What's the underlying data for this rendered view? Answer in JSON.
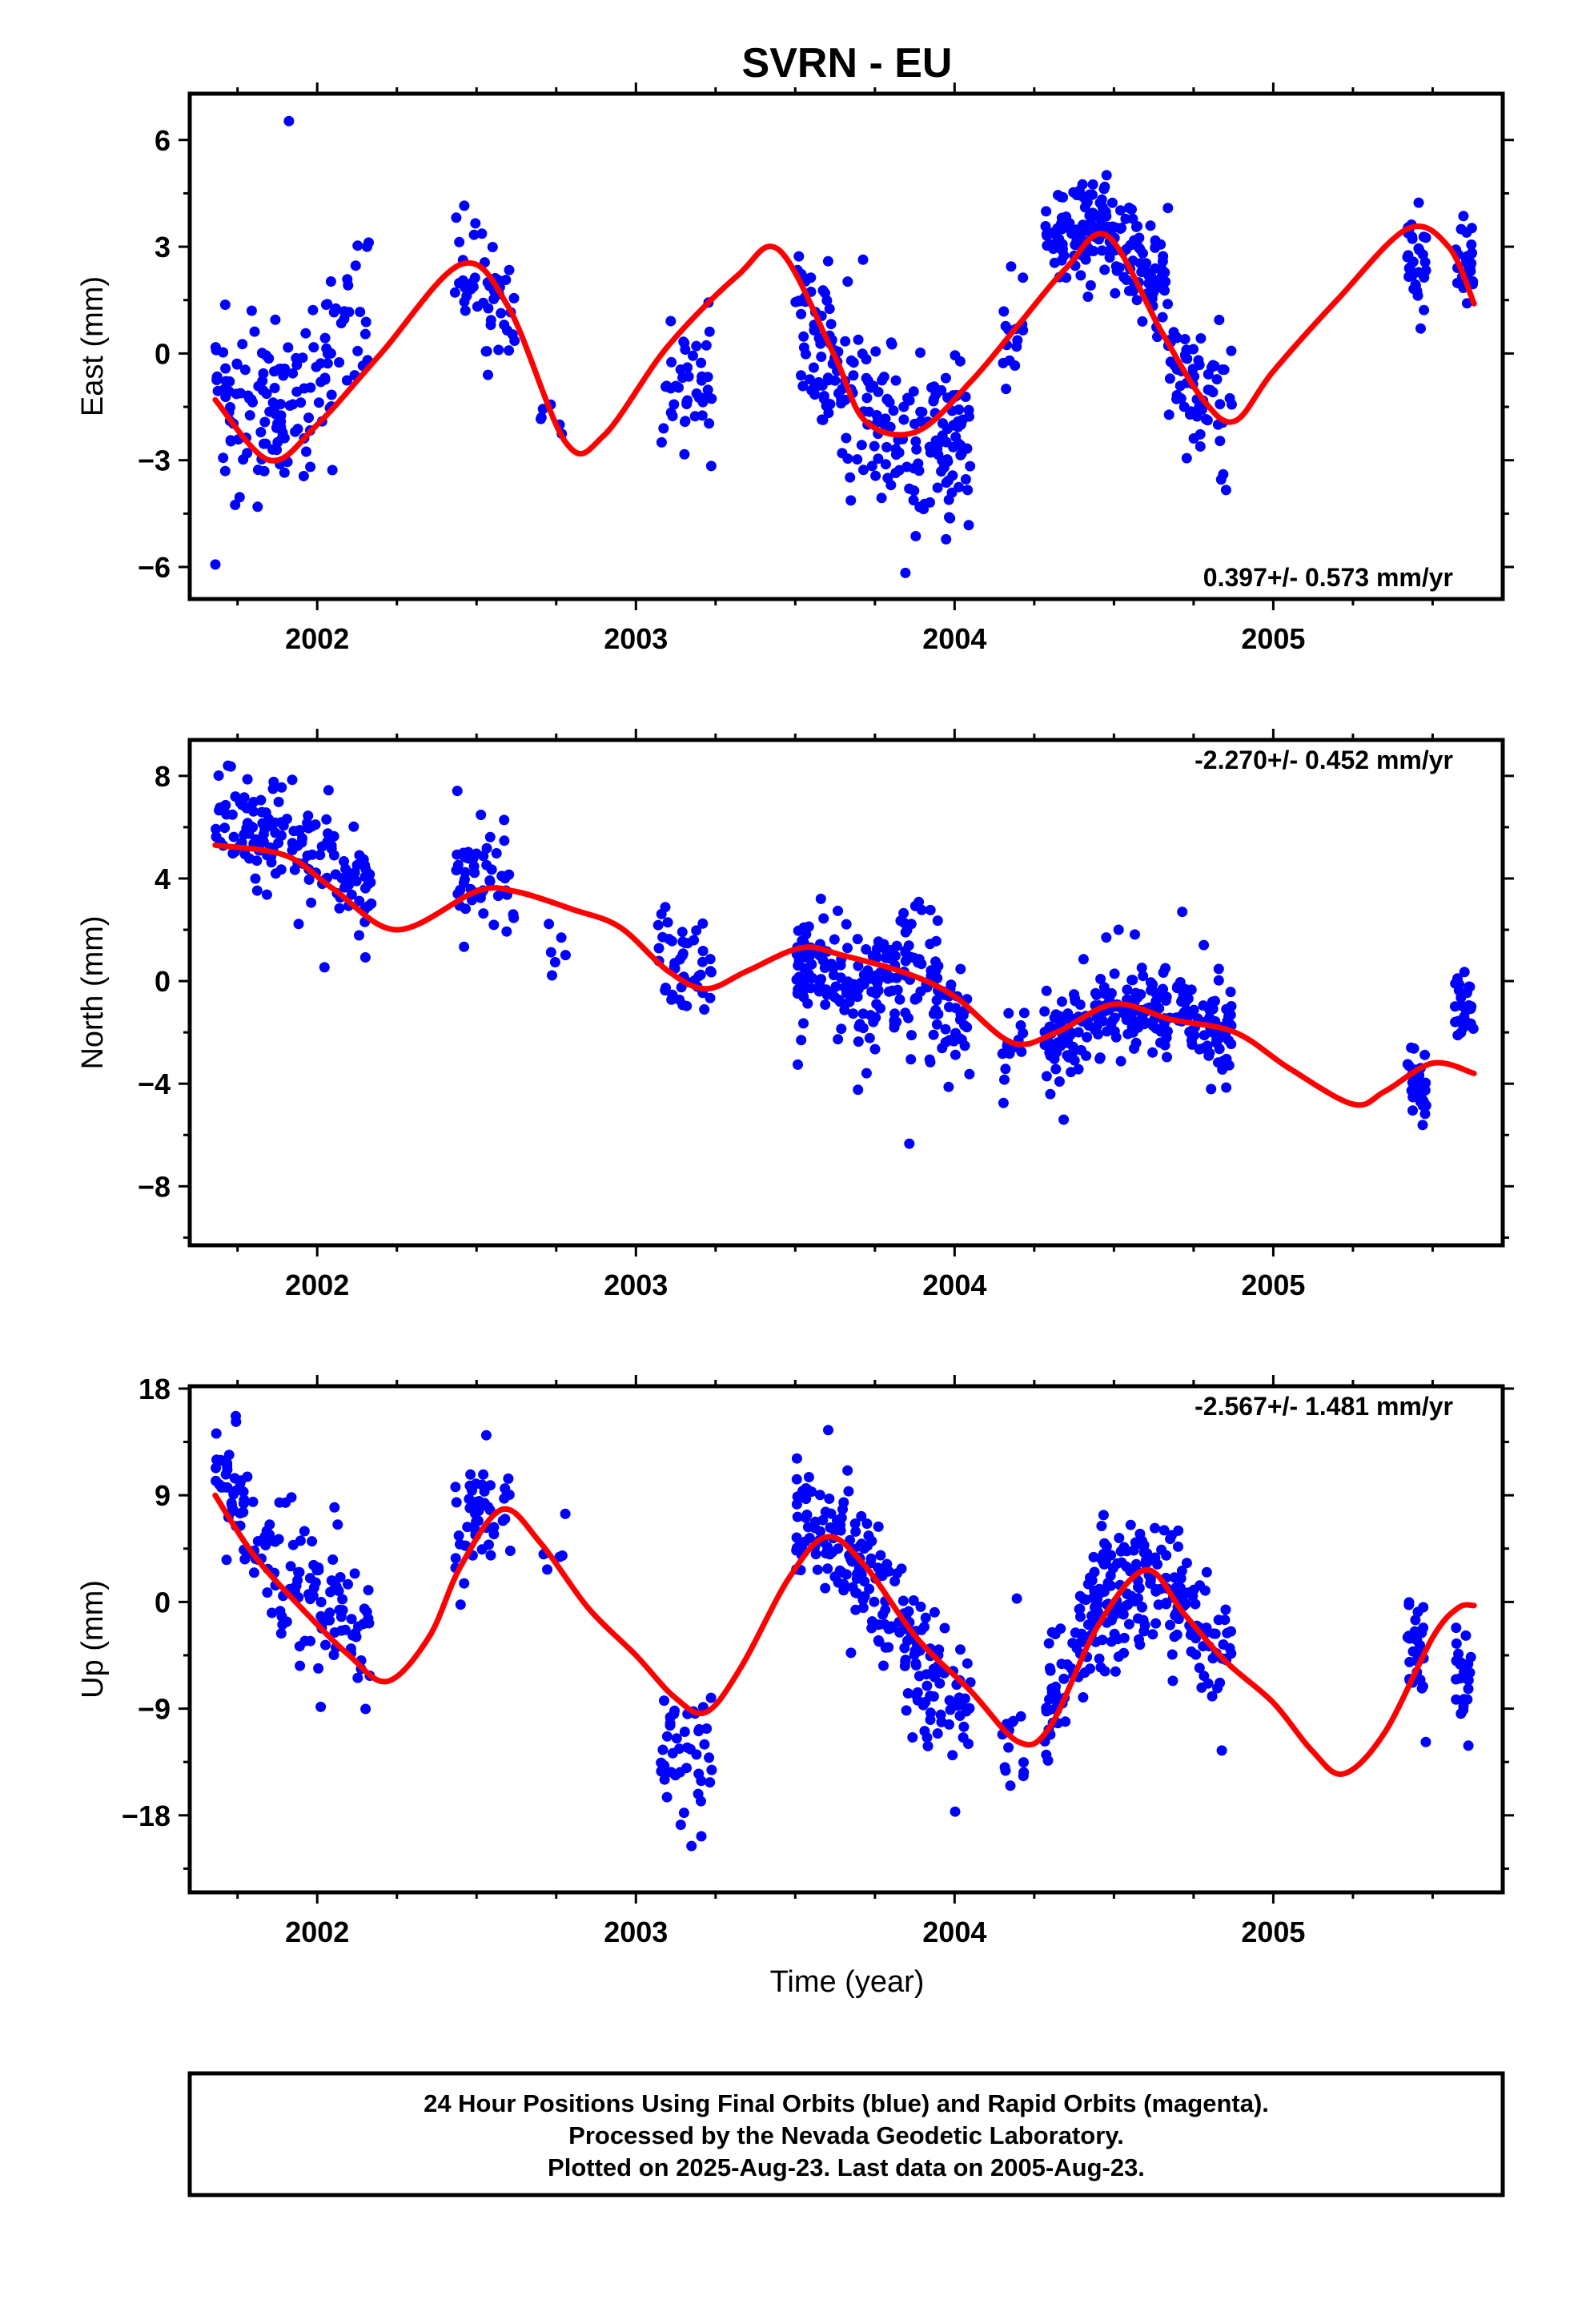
{
  "title": "SVRN - EU",
  "xlabel": "Time (year)",
  "footer": {
    "line1": "24 Hour Positions Using Final Orbits (blue) and Rapid Orbits (magenta).",
    "line2": "Processed by the Nevada Geodetic Laboratory.",
    "line3": "Plotted on 2025-Aug-23. Last data on 2005-Aug-23."
  },
  "colors": {
    "points": "#0000ff",
    "fit": "#ff0000",
    "frame": "#000000"
  },
  "chart_data": [
    {
      "type": "scatter",
      "name": "east",
      "ylabel": "East (mm)",
      "rate_text": "0.397+/- 0.573 mm/yr",
      "rate_position": "bottom-right",
      "xlim": [
        2001.6,
        2005.72
      ],
      "ylim": [
        -6.9,
        7.3
      ],
      "xticks": [
        2002,
        2003,
        2004,
        2005
      ],
      "yticks": [
        -6,
        -3,
        0,
        3,
        6
      ],
      "fit_knots": [
        [
          2001.68,
          -1.3
        ],
        [
          2001.85,
          -3.0
        ],
        [
          2002.0,
          -2.0
        ],
        [
          2002.2,
          0.0
        ],
        [
          2002.45,
          2.5
        ],
        [
          2002.6,
          1.3
        ],
        [
          2002.78,
          -2.5
        ],
        [
          2002.9,
          -2.3
        ],
        [
          2003.1,
          0.2
        ],
        [
          2003.32,
          2.2
        ],
        [
          2003.45,
          2.9
        ],
        [
          2003.62,
          0.0
        ],
        [
          2003.72,
          -1.9
        ],
        [
          2003.88,
          -2.2
        ],
        [
          2004.05,
          -0.8
        ],
        [
          2004.2,
          0.8
        ],
        [
          2004.35,
          2.4
        ],
        [
          2004.48,
          3.3
        ],
        [
          2004.65,
          0.6
        ],
        [
          2004.78,
          -1.3
        ],
        [
          2004.88,
          -1.9
        ],
        [
          2005.0,
          -0.5
        ],
        [
          2005.2,
          1.5
        ],
        [
          2005.42,
          3.5
        ],
        [
          2005.55,
          3.0
        ],
        [
          2005.63,
          1.4
        ]
      ],
      "point_groups": [
        {
          "x_range": [
            2001.68,
            2002.17
          ],
          "trend": [
            [
              2001.68,
              -1.0
            ],
            [
              2001.85,
              -2.0
            ],
            [
              2002.0,
              -0.5
            ],
            [
              2002.15,
              1.5
            ]
          ],
          "spread": 2.3,
          "count": 150
        },
        {
          "x_range": [
            2002.43,
            2002.62
          ],
          "trend": [
            [
              2002.43,
              3.0
            ],
            [
              2002.62,
              0.5
            ]
          ],
          "spread": 1.8,
          "count": 50
        },
        {
          "x_range": [
            2002.7,
            2002.78
          ],
          "trend": [
            [
              2002.7,
              -1.5
            ],
            [
              2002.78,
              -2.2
            ]
          ],
          "spread": 0.8,
          "count": 6
        },
        {
          "x_range": [
            2003.07,
            2003.24
          ],
          "trend": [
            [
              2003.07,
              -1.2
            ],
            [
              2003.24,
              -0.8
            ]
          ],
          "spread": 1.8,
          "count": 45
        },
        {
          "x_range": [
            2003.5,
            2004.05
          ],
          "trend": [
            [
              2003.5,
              1.5
            ],
            [
              2003.7,
              -2.0
            ],
            [
              2003.9,
              -3.0
            ],
            [
              2004.05,
              -2.5
            ]
          ],
          "spread": 2.6,
          "count": 220
        },
        {
          "x_range": [
            2004.15,
            2004.22
          ],
          "trend": [
            [
              2004.15,
              0.0
            ],
            [
              2004.22,
              1.0
            ]
          ],
          "spread": 1.2,
          "count": 15
        },
        {
          "x_range": [
            2004.28,
            2004.67
          ],
          "trend": [
            [
              2004.28,
              3.2
            ],
            [
              2004.45,
              3.8
            ],
            [
              2004.67,
              1.8
            ]
          ],
          "spread": 1.4,
          "count": 180
        },
        {
          "x_range": [
            2004.67,
            2004.87
          ],
          "trend": [
            [
              2004.67,
              -0.5
            ],
            [
              2004.87,
              -1.8
            ]
          ],
          "spread": 1.7,
          "count": 70
        },
        {
          "x_range": [
            2005.42,
            2005.48
          ],
          "trend": [
            [
              2005.42,
              3.0
            ],
            [
              2005.48,
              2.0
            ]
          ],
          "spread": 1.6,
          "count": 30
        },
        {
          "x_range": [
            2005.57,
            2005.63
          ],
          "trend": [
            [
              2005.57,
              2.8
            ],
            [
              2005.63,
              2.2
            ]
          ],
          "spread": 1.3,
          "count": 25
        }
      ],
      "seed": 11
    },
    {
      "type": "scatter",
      "name": "north",
      "ylabel": "North (mm)",
      "rate_text": "-2.270+/- 0.452 mm/yr",
      "rate_position": "top-right",
      "xlim": [
        2001.6,
        2005.72
      ],
      "ylim": [
        -10.3,
        9.4
      ],
      "xticks": [
        2002,
        2003,
        2004,
        2005
      ],
      "yticks": [
        -8,
        -4,
        0,
        4,
        8
      ],
      "fit_knots": [
        [
          2001.68,
          5.3
        ],
        [
          2001.9,
          4.9
        ],
        [
          2002.05,
          3.6
        ],
        [
          2002.25,
          2.0
        ],
        [
          2002.5,
          3.5
        ],
        [
          2002.62,
          3.5
        ],
        [
          2002.8,
          2.8
        ],
        [
          2002.95,
          2.1
        ],
        [
          2003.1,
          0.4
        ],
        [
          2003.22,
          -0.3
        ],
        [
          2003.35,
          0.4
        ],
        [
          2003.52,
          1.3
        ],
        [
          2003.65,
          1.0
        ],
        [
          2003.85,
          0.3
        ],
        [
          2004.0,
          -0.6
        ],
        [
          2004.18,
          -2.4
        ],
        [
          2004.32,
          -2.0
        ],
        [
          2004.5,
          -0.9
        ],
        [
          2004.68,
          -1.5
        ],
        [
          2004.88,
          -2.0
        ],
        [
          2005.05,
          -3.4
        ],
        [
          2005.25,
          -4.8
        ],
        [
          2005.35,
          -4.3
        ],
        [
          2005.5,
          -3.2
        ],
        [
          2005.63,
          -3.6
        ]
      ],
      "point_groups": [
        {
          "x_range": [
            2001.68,
            2001.85
          ],
          "trend": [
            [
              2001.68,
              6.8
            ],
            [
              2001.85,
              5.5
            ]
          ],
          "spread": 1.6,
          "count": 55
        },
        {
          "x_range": [
            2001.85,
            2002.17
          ],
          "trend": [
            [
              2001.85,
              6.5
            ],
            [
              2002.0,
              5.0
            ],
            [
              2002.17,
              2.8
            ]
          ],
          "spread": 2.0,
          "count": 90
        },
        {
          "x_range": [
            2002.43,
            2002.62
          ],
          "trend": [
            [
              2002.43,
              4.5
            ],
            [
              2002.62,
              3.0
            ]
          ],
          "spread": 2.2,
          "count": 50
        },
        {
          "x_range": [
            2002.7,
            2002.78
          ],
          "trend": [
            [
              2002.7,
              1.5
            ],
            [
              2002.78,
              0.8
            ]
          ],
          "spread": 1.5,
          "count": 6
        },
        {
          "x_range": [
            2003.07,
            2003.24
          ],
          "trend": [
            [
              2003.07,
              0.8
            ],
            [
              2003.24,
              0.6
            ]
          ],
          "spread": 1.8,
          "count": 45
        },
        {
          "x_range": [
            2003.5,
            2004.05
          ],
          "trend": [
            [
              2003.5,
              0.5
            ],
            [
              2003.7,
              -0.5
            ],
            [
              2003.85,
              0.8
            ],
            [
              2004.05,
              -2.0
            ]
          ],
          "spread": 2.3,
          "count": 220
        },
        {
          "x_range": [
            2004.15,
            2004.22
          ],
          "trend": [
            [
              2004.15,
              -3.0
            ],
            [
              2004.22,
              -2.0
            ]
          ],
          "spread": 1.4,
          "count": 15
        },
        {
          "x_range": [
            2004.28,
            2004.87
          ],
          "trend": [
            [
              2004.28,
              -2.5
            ],
            [
              2004.5,
              -1.0
            ],
            [
              2004.7,
              -1.5
            ],
            [
              2004.87,
              -2.0
            ]
          ],
          "spread": 1.6,
          "count": 250
        },
        {
          "x_range": [
            2005.42,
            2005.48
          ],
          "trend": [
            [
              2005.42,
              -3.0
            ],
            [
              2005.48,
              -4.5
            ]
          ],
          "spread": 1.4,
          "count": 30
        },
        {
          "x_range": [
            2005.57,
            2005.63
          ],
          "trend": [
            [
              2005.57,
              -0.8
            ],
            [
              2005.63,
              -1.5
            ]
          ],
          "spread": 1.2,
          "count": 25
        }
      ],
      "seed": 23
    },
    {
      "type": "scatter",
      "name": "up",
      "ylabel": "Up (mm)",
      "rate_text": "-2.567+/- 1.481 mm/yr",
      "rate_position": "top-right",
      "xlim": [
        2001.6,
        2005.72
      ],
      "ylim": [
        -24.5,
        18.2
      ],
      "xticks": [
        2002,
        2003,
        2004,
        2005
      ],
      "yticks": [
        -18,
        -9,
        0,
        9,
        18
      ],
      "fit_knots": [
        [
          2001.68,
          9.0
        ],
        [
          2001.8,
          4.0
        ],
        [
          2001.95,
          -0.5
        ],
        [
          2002.1,
          -4.5
        ],
        [
          2002.22,
          -6.7
        ],
        [
          2002.35,
          -3.0
        ],
        [
          2002.45,
          3.0
        ],
        [
          2002.58,
          7.8
        ],
        [
          2002.7,
          5.0
        ],
        [
          2002.85,
          -0.5
        ],
        [
          2003.0,
          -4.5
        ],
        [
          2003.12,
          -8.0
        ],
        [
          2003.22,
          -9.3
        ],
        [
          2003.33,
          -5.5
        ],
        [
          2003.48,
          2.0
        ],
        [
          2003.6,
          5.5
        ],
        [
          2003.72,
          3.0
        ],
        [
          2003.88,
          -3.0
        ],
        [
          2004.05,
          -7.5
        ],
        [
          2004.2,
          -11.8
        ],
        [
          2004.3,
          -10.5
        ],
        [
          2004.45,
          -2.0
        ],
        [
          2004.6,
          2.7
        ],
        [
          2004.72,
          -1.0
        ],
        [
          2004.85,
          -5.0
        ],
        [
          2005.0,
          -8.5
        ],
        [
          2005.12,
          -12.5
        ],
        [
          2005.22,
          -14.5
        ],
        [
          2005.35,
          -11.0
        ],
        [
          2005.5,
          -3.0
        ],
        [
          2005.58,
          -0.5
        ],
        [
          2005.63,
          -0.3
        ]
      ],
      "point_groups": [
        {
          "x_range": [
            2001.68,
            2001.85
          ],
          "trend": [
            [
              2001.68,
              11.0
            ],
            [
              2001.85,
              4.0
            ]
          ],
          "spread": 5.0,
          "count": 55
        },
        {
          "x_range": [
            2001.85,
            2002.17
          ],
          "trend": [
            [
              2001.85,
              3.0
            ],
            [
              2002.0,
              0.0
            ],
            [
              2002.17,
              -3.0
            ]
          ],
          "spread": 6.0,
          "count": 90
        },
        {
          "x_range": [
            2002.43,
            2002.62
          ],
          "trend": [
            [
              2002.43,
              6.0
            ],
            [
              2002.62,
              9.5
            ]
          ],
          "spread": 4.5,
          "count": 50
        },
        {
          "x_range": [
            2002.7,
            2002.78
          ],
          "trend": [
            [
              2002.7,
              4.5
            ],
            [
              2002.78,
              4.0
            ]
          ],
          "spread": 2.5,
          "count": 6
        },
        {
          "x_range": [
            2003.07,
            2003.24
          ],
          "trend": [
            [
              2003.07,
              -12.0
            ],
            [
              2003.24,
              -14.0
            ]
          ],
          "spread": 5.0,
          "count": 45
        },
        {
          "x_range": [
            2003.5,
            2004.05
          ],
          "trend": [
            [
              2003.5,
              8.0
            ],
            [
              2003.7,
              3.0
            ],
            [
              2003.9,
              -5.0
            ],
            [
              2004.05,
              -9.5
            ]
          ],
          "spread": 5.5,
          "count": 220
        },
        {
          "x_range": [
            2004.15,
            2004.22
          ],
          "trend": [
            [
              2004.15,
              -12.5
            ],
            [
              2004.22,
              -12.0
            ]
          ],
          "spread": 4.0,
          "count": 15
        },
        {
          "x_range": [
            2004.28,
            2004.67
          ],
          "trend": [
            [
              2004.28,
              -10.0
            ],
            [
              2004.45,
              0.0
            ],
            [
              2004.67,
              3.0
            ]
          ],
          "spread": 5.5,
          "count": 180
        },
        {
          "x_range": [
            2004.67,
            2004.87
          ],
          "trend": [
            [
              2004.67,
              1.0
            ],
            [
              2004.87,
              -4.0
            ]
          ],
          "spread": 5.0,
          "count": 70
        },
        {
          "x_range": [
            2005.42,
            2005.48
          ],
          "trend": [
            [
              2005.42,
              -4.0
            ],
            [
              2005.48,
              -5.0
            ]
          ],
          "spread": 4.0,
          "count": 30
        },
        {
          "x_range": [
            2005.57,
            2005.63
          ],
          "trend": [
            [
              2005.57,
              -6.0
            ],
            [
              2005.63,
              -8.0
            ]
          ],
          "spread": 4.0,
          "count": 25
        }
      ],
      "seed": 37
    }
  ]
}
